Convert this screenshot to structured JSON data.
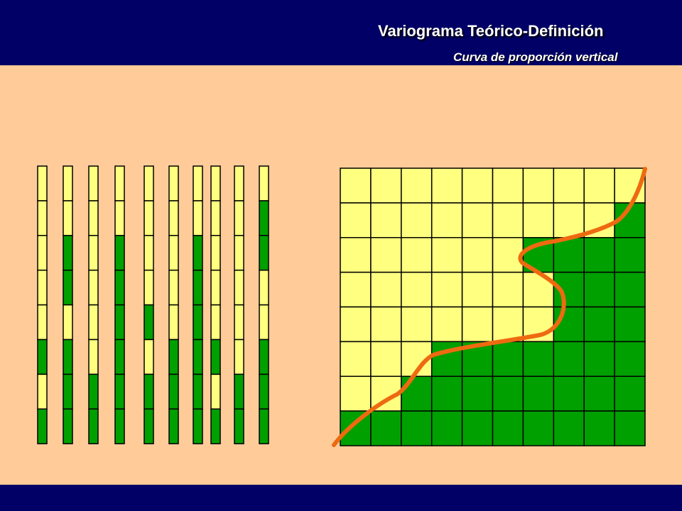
{
  "header": {
    "title": "Variograma Teórico-Definición",
    "subtitle": "Curva de proporción vertical"
  },
  "colors": {
    "header_bg": "#000066",
    "background": "#ffcc99",
    "yellow_facies": "#ffff80",
    "green_facies": "#00a000",
    "curve": "#ee6a10",
    "grid_line": "#000000"
  },
  "wells": {
    "legend": "Y = yellow facies, G = green facies, cells listed top to bottom",
    "columns": [
      "YYYYYGYG",
      "YYGGYGGG",
      "YYYYYYGG",
      "YYGGGGGG",
      "YYYYGYGG",
      "YYYYYGGG",
      "YYGGGGGG",
      "YYYYYGYG",
      "YYYYYYGG",
      "YGGYYGGG"
    ]
  },
  "proportion_grid": {
    "rows": 8,
    "cols": 10,
    "green_count_per_row": [
      0,
      1,
      4,
      3,
      3,
      7,
      8,
      10
    ]
  }
}
